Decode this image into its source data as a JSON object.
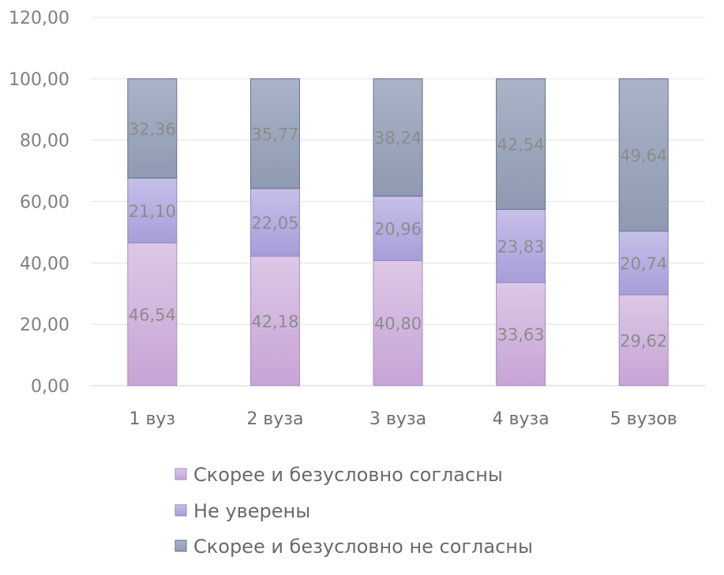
{
  "chart_data": {
    "type": "bar",
    "stacked": true,
    "categories": [
      "1 вуз",
      "2 вуза",
      "3 вуза",
      "4 вуза",
      "5 вузов"
    ],
    "series": [
      {
        "name": "Скорее и безусловно согласны",
        "values": [
          46.54,
          42.18,
          40.8,
          33.63,
          29.62
        ],
        "labels": [
          "46,54",
          "42,18",
          "40,80",
          "33,63",
          "29,62"
        ],
        "color_top": "#dcc8e6",
        "color_bottom": "#c7a4d6",
        "stroke": "#a68bc4"
      },
      {
        "name": "Не уверены",
        "values": [
          21.1,
          22.05,
          20.96,
          23.83,
          20.74
        ],
        "labels": [
          "21,10",
          "22,05",
          "20,96",
          "23,83",
          "20,74"
        ],
        "color_top": "#c6c0e9",
        "color_bottom": "#a79dd9",
        "stroke": "#8f86c6"
      },
      {
        "name": "Скорее и безусловно не согласны",
        "values": [
          32.36,
          35.77,
          38.24,
          42.54,
          49.64
        ],
        "labels": [
          "32,36",
          "35,77",
          "38,24",
          "42,54",
          "49,64"
        ],
        "color_top": "#aab3c7",
        "color_bottom": "#8f9ab2",
        "stroke": "#64708e"
      }
    ],
    "yticks": [
      0,
      20,
      40,
      60,
      80,
      100,
      120
    ],
    "ytick_labels": [
      "0,00",
      "20,00",
      "40,00",
      "60,00",
      "80,00",
      "100,00",
      "120,00"
    ],
    "ylim": [
      0,
      120
    ],
    "grid": true,
    "legend_position": "bottom"
  }
}
